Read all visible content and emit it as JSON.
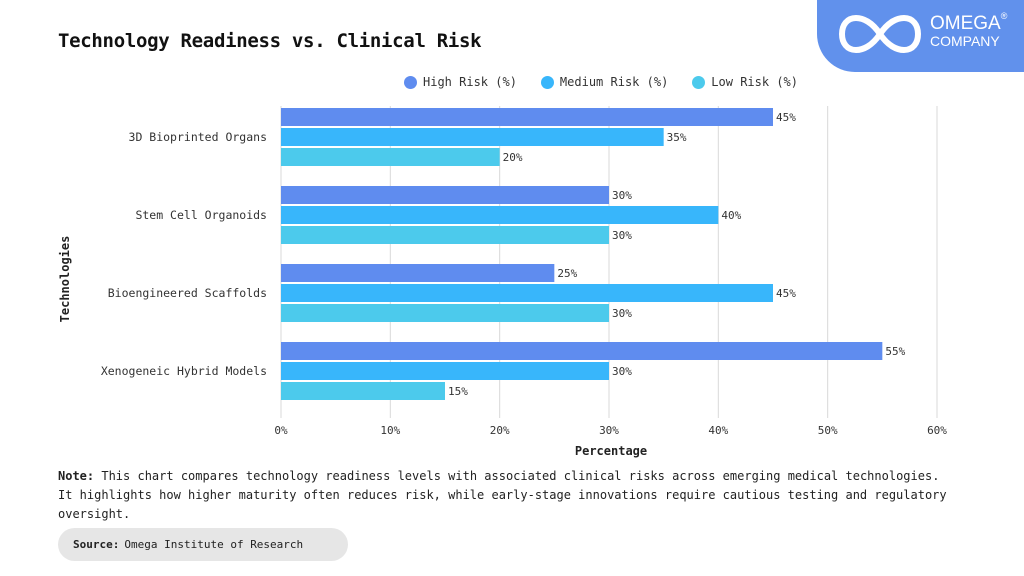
{
  "header": {
    "title": "Technology Readiness vs. Clinical Risk"
  },
  "logo": {
    "icon": "infinity-icon",
    "name": "OMEGA",
    "registered": "®",
    "sub": "COMPANY",
    "color": "#6191ec"
  },
  "legend": [
    {
      "label": "High Risk (%)",
      "color": "#5f8cef"
    },
    {
      "label": "Medium Risk (%)",
      "color": "#38b6fb"
    },
    {
      "label": "Low Risk (%)",
      "color": "#4ccaec"
    }
  ],
  "chart_data": {
    "type": "bar",
    "orientation": "horizontal",
    "title": "Technology Readiness vs. Clinical Risk",
    "xlabel": "Percentage",
    "ylabel": "Technologies",
    "categories": [
      "3D Bioprinted Organs",
      "Stem Cell Organoids",
      "Bioengineered Scaffolds",
      "Xenogeneic Hybrid Models"
    ],
    "series": [
      {
        "name": "High Risk (%)",
        "color": "#5f8cef",
        "values": [
          45,
          30,
          25,
          55
        ]
      },
      {
        "name": "Medium Risk (%)",
        "color": "#38b6fb",
        "values": [
          35,
          40,
          45,
          30
        ]
      },
      {
        "name": "Low Risk (%)",
        "color": "#4ccaec",
        "values": [
          20,
          30,
          30,
          15
        ]
      }
    ],
    "xlim": [
      0,
      60
    ],
    "xticks": [
      0,
      10,
      20,
      30,
      40,
      50,
      60
    ],
    "xtick_labels": [
      "0%",
      "10%",
      "20%",
      "30%",
      "40%",
      "50%",
      "60%"
    ],
    "value_suffix": "%",
    "grid": true,
    "legend_position": "top-center"
  },
  "note": {
    "label": "Note:",
    "text": "This chart compares technology readiness levels with associated clinical risks across emerging medical technologies. It highlights how higher maturity often reduces risk, while early-stage innovations require cautious testing and regulatory oversight."
  },
  "source": {
    "label": "Source:",
    "text": "Omega Institute of Research"
  }
}
